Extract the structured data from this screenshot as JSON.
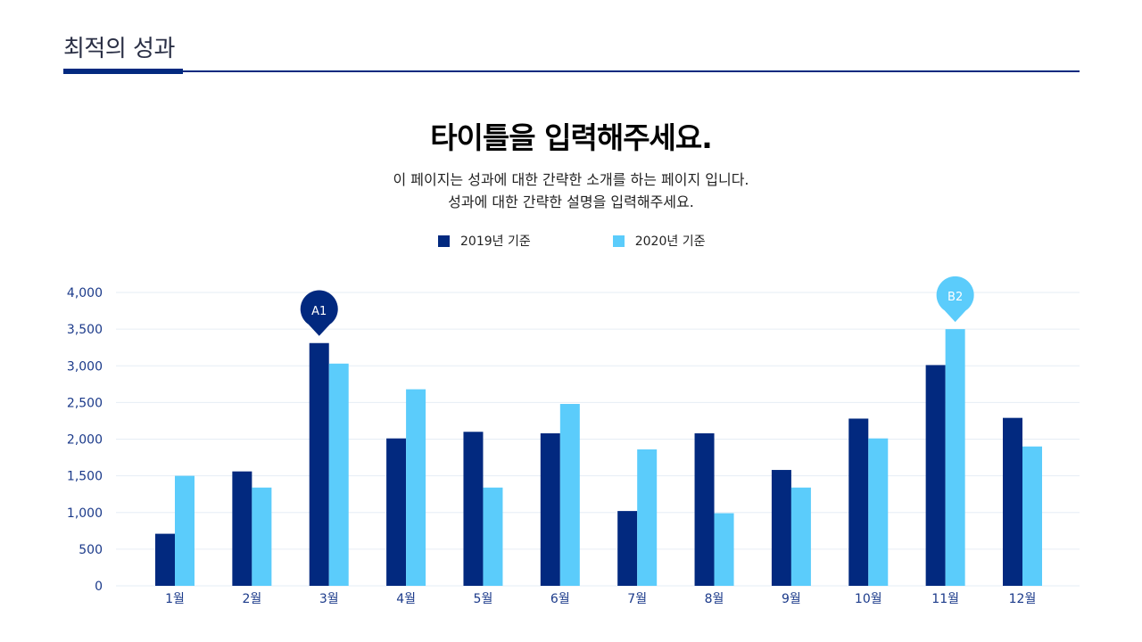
{
  "header": {
    "section_title": "최적의 성과"
  },
  "main": {
    "title": "타이틀을 입력해주세요.",
    "subtitle_line1": "이 페이지는 성과에 대한 간략한 소개를 하는 페이지 입니다.",
    "subtitle_line2": "성과에 대한 간략한 설명을 입력해주세요."
  },
  "legend": [
    {
      "label": "2019년 기준",
      "color": "#02297f"
    },
    {
      "label": "2020년 기준",
      "color": "#5bccfb"
    }
  ],
  "chart_data": {
    "type": "bar",
    "categories": [
      "1월",
      "2월",
      "3월",
      "4월",
      "5월",
      "6월",
      "7월",
      "8월",
      "9월",
      "10월",
      "11월",
      "12월"
    ],
    "series": [
      {
        "name": "2019년 기준",
        "color": "#02297f",
        "values": [
          710,
          1560,
          3310,
          2010,
          2100,
          2080,
          1020,
          2080,
          1580,
          2280,
          3010,
          2290
        ]
      },
      {
        "name": "2020년 기준",
        "color": "#5bccfb",
        "values": [
          1500,
          1340,
          3030,
          2680,
          1340,
          2480,
          1860,
          990,
          1340,
          2010,
          3500,
          1900
        ]
      }
    ],
    "ylim": [
      0,
      4000
    ],
    "yticks": [
      0,
      500,
      1000,
      1500,
      2000,
      2500,
      3000,
      3500,
      4000
    ],
    "ytick_labels": [
      "0",
      "500",
      "1,000",
      "1,500",
      "2,000",
      "2,500",
      "3,000",
      "3,500",
      "4,000"
    ],
    "grid": true,
    "legend_position": "top-center",
    "annotations": [
      {
        "label": "A1",
        "category": "3월",
        "series": "2019년 기준",
        "color": "#02297f"
      },
      {
        "label": "B2",
        "category": "11월",
        "series": "2020년 기준",
        "color": "#5bccfb"
      }
    ]
  }
}
